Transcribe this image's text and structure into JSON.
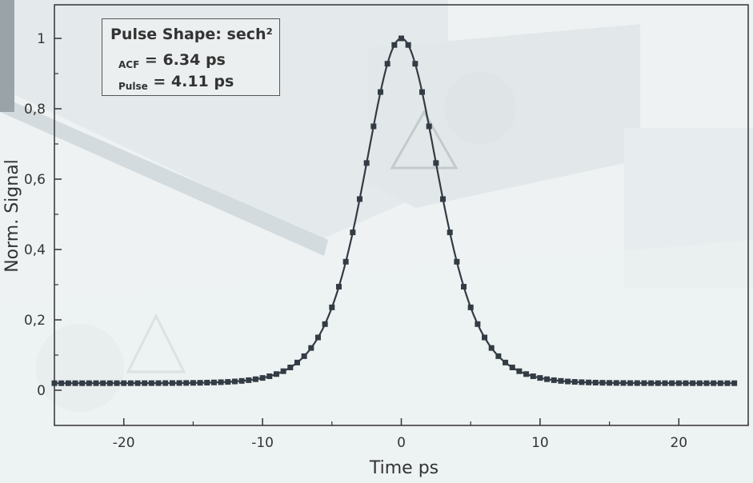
{
  "chart_data": {
    "type": "scatter",
    "xlabel": "Time  ps",
    "ylabel": "Norm. Signal",
    "xlim": [
      -25,
      25
    ],
    "ylim": [
      -0.1,
      1.1
    ],
    "xticks": [
      -20,
      -10,
      0,
      10,
      20
    ],
    "xtick_labels": [
      "-20",
      "-10",
      "0",
      "10",
      "20"
    ],
    "yticks": [
      0,
      0.2,
      0.4,
      0.6,
      0.8,
      1
    ],
    "ytick_labels": [
      "0",
      "0,2",
      "0,4",
      "0,6",
      "0,8",
      "1"
    ],
    "grid": false,
    "legend": {
      "placement": "top-left",
      "title": "Pulse Shape: sech²",
      "acf_sub": "ACF",
      "acf_value": "= 6.34 ps",
      "pulse_sub": "Pulse",
      "pulse_value": "= 4.11 ps"
    },
    "series": [
      {
        "kind": "markers",
        "baseline": 0.02,
        "fwhm_ps": 6.34,
        "x_range": [
          -25,
          24
        ],
        "step": 0.5
      },
      {
        "kind": "fit-line",
        "baseline": 0.02,
        "fwhm_ps": 6.34,
        "x_range": [
          -25,
          24
        ],
        "step": 0.1
      }
    ]
  },
  "colors": {
    "data": "#333c44",
    "axis": "#333333",
    "background": "#f0f3f4"
  }
}
